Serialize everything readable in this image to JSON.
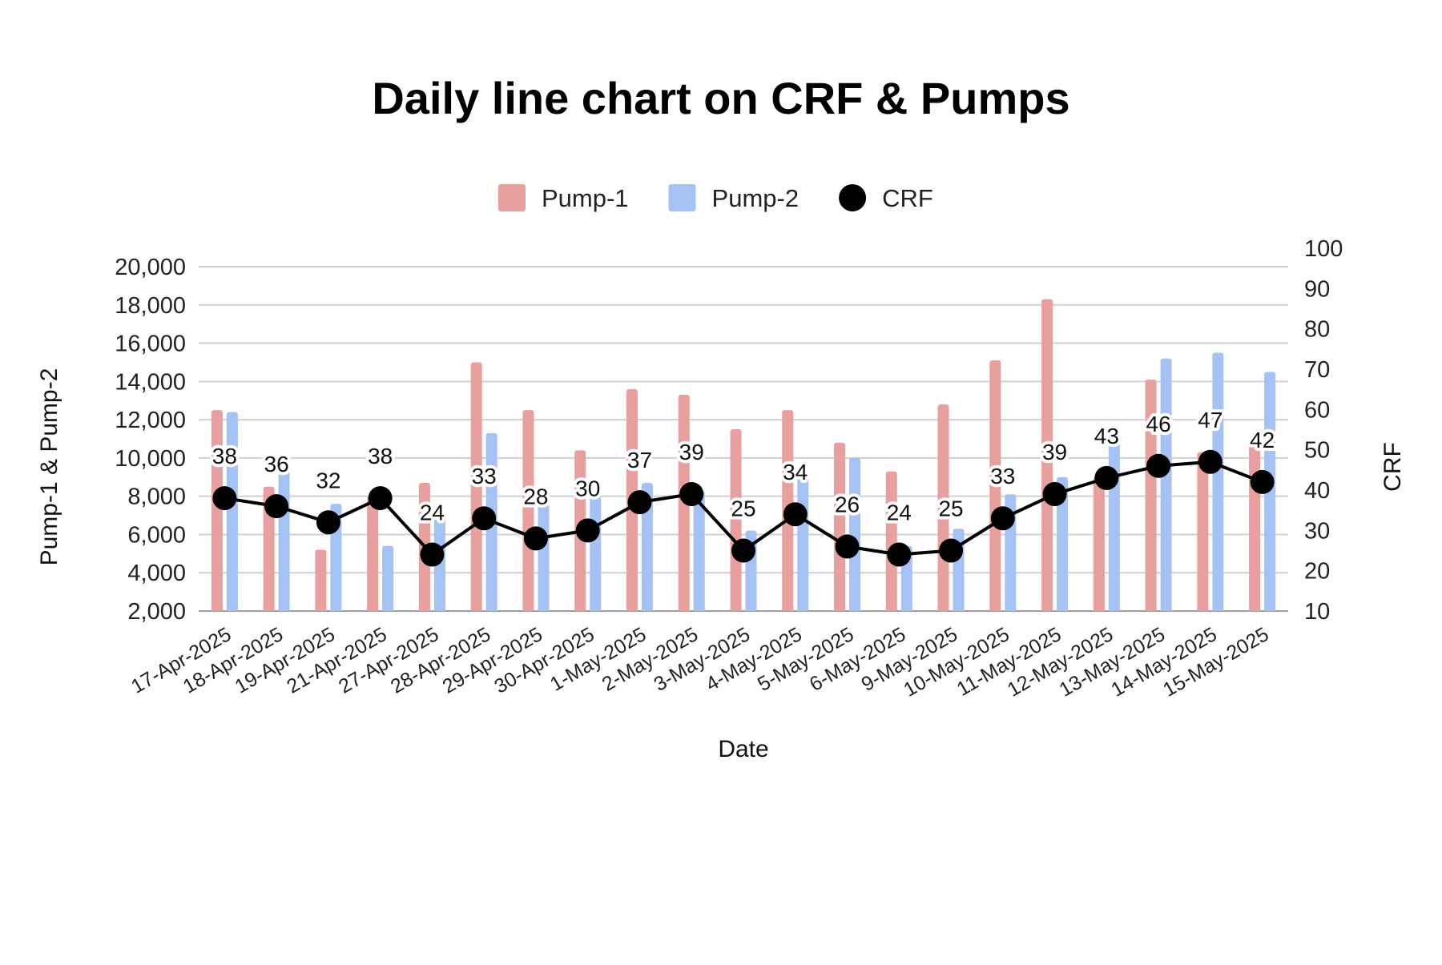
{
  "chart_data": {
    "type": "bar",
    "title": "Daily line chart on CRF & Pumps",
    "xlabel": "Date",
    "ylabel_left": "Pump-1 & Pump-2",
    "ylabel_right": "CRF",
    "ylim_left": [
      2000,
      20000
    ],
    "ylim_right": [
      10,
      100
    ],
    "yticks_left": [
      "2,000",
      "4,000",
      "6,000",
      "8,000",
      "10,000",
      "12,000",
      "14,000",
      "16,000",
      "18,000",
      "20,000"
    ],
    "yticks_right": [
      "10",
      "20",
      "30",
      "40",
      "50",
      "60",
      "70",
      "80",
      "90",
      "100"
    ],
    "grid": true,
    "legend_position": "top",
    "categories": [
      "17-Apr-2025",
      "18-Apr-2025",
      "19-Apr-2025",
      "21-Apr-2025",
      "27-Apr-2025",
      "28-Apr-2025",
      "29-Apr-2025",
      "30-Apr-2025",
      "1-May-2025",
      "2-May-2025",
      "3-May-2025",
      "4-May-2025",
      "5-May-2025",
      "6-May-2025",
      "9-May-2025",
      "10-May-2025",
      "11-May-2025",
      "12-May-2025",
      "13-May-2025",
      "14-May-2025",
      "15-May-2025"
    ],
    "series": [
      {
        "name": "Pump-1",
        "type": "bar",
        "axis": "left",
        "color": "#e8a09e",
        "values": [
          12500,
          8500,
          5200,
          8000,
          8700,
          15000,
          12500,
          10400,
          13600,
          13300,
          11500,
          12500,
          10800,
          9300,
          12800,
          15100,
          18300,
          9000,
          14100,
          10300,
          10800
        ]
      },
      {
        "name": "Pump-2",
        "type": "bar",
        "axis": "left",
        "color": "#a4c2f4",
        "values": [
          12400,
          9400,
          7600,
          5400,
          7000,
          11300,
          7800,
          8100,
          8700,
          8300,
          6200,
          9000,
          10000,
          5400,
          6300,
          8100,
          9000,
          11000,
          15200,
          15500,
          14500
        ]
      },
      {
        "name": "CRF",
        "type": "line",
        "axis": "right",
        "color": "#000000",
        "values": [
          38,
          36,
          32,
          38,
          24,
          33,
          28,
          30,
          37,
          39,
          25,
          34,
          26,
          24,
          25,
          33,
          39,
          43,
          46,
          47,
          42
        ]
      }
    ]
  }
}
